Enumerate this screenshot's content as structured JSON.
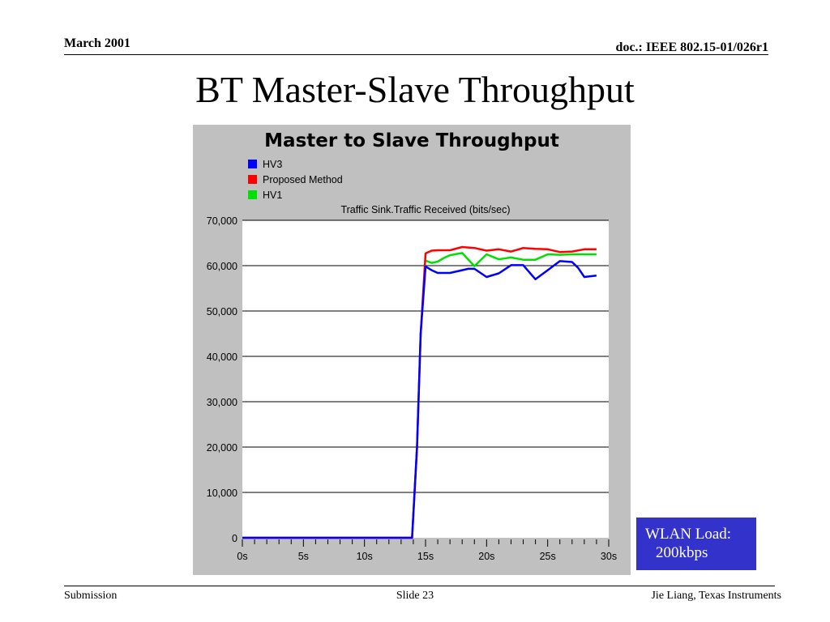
{
  "header": {
    "date": "March 2001",
    "doc": "doc.: IEEE 802.15-01/026r1"
  },
  "slide_title": "BT Master-Slave Throughput",
  "note": {
    "line1": "WLAN Load:",
    "line2": "200kbps"
  },
  "footer": {
    "left": "Submission",
    "center": "Slide 23",
    "right": "Jie Liang, Texas Instruments"
  },
  "colors": {
    "panel": "#c0c0c0",
    "plot_bg": "#ffffff",
    "note_bg": "#3333cc"
  },
  "chart_data": {
    "type": "line",
    "title": "Master to Slave Throughput",
    "ylabel": "Traffic Sink.Traffic Received (bits/sec)",
    "xlabel": "",
    "xlim": [
      0,
      30
    ],
    "ylim": [
      0,
      70000
    ],
    "grid": true,
    "legend_position": "top-left",
    "x_ticks": [
      0,
      5,
      10,
      15,
      20,
      25,
      30
    ],
    "x_tick_labels": [
      "0s",
      "5s",
      "10s",
      "15s",
      "20s",
      "25s",
      "30s"
    ],
    "y_ticks": [
      0,
      10000,
      20000,
      30000,
      40000,
      50000,
      60000,
      70000
    ],
    "y_tick_labels": [
      "0",
      "10,000",
      "20,000",
      "30,000",
      "40,000",
      "50,000",
      "60,000",
      "70,000"
    ],
    "series": [
      {
        "name": "HV3",
        "color": "#0000ff",
        "x": [
          0,
          13.9,
          14.3,
          14.6,
          15.0,
          15.5,
          16.0,
          17.0,
          18.0,
          18.5,
          19.0,
          20.0,
          21.0,
          22.0,
          23.0,
          24.0,
          25.0,
          26.0,
          27.0,
          27.5,
          28.0,
          29.0
        ],
        "y": [
          0,
          0,
          20000,
          45000,
          59800,
          59000,
          58400,
          58400,
          59000,
          59300,
          59300,
          57500,
          58300,
          60100,
          60100,
          57000,
          59000,
          61000,
          60800,
          59500,
          57500,
          57800
        ]
      },
      {
        "name": "Proposed Method",
        "color": "#ff0000",
        "x": [
          0,
          13.9,
          14.3,
          14.6,
          15.0,
          15.5,
          16.0,
          17.0,
          18.0,
          19.0,
          20.0,
          21.0,
          22.0,
          23.0,
          24.0,
          25.0,
          26.0,
          27.0,
          28.0,
          29.0
        ],
        "y": [
          0,
          0,
          20000,
          45000,
          62700,
          63300,
          63400,
          63400,
          64100,
          63900,
          63300,
          63600,
          63100,
          63900,
          63700,
          63600,
          63000,
          63100,
          63600,
          63600
        ]
      },
      {
        "name": "HV1",
        "color": "#00e000",
        "x": [
          15.0,
          15.5,
          16.0,
          16.5,
          17.0,
          18.0,
          19.0,
          20.0,
          21.0,
          22.0,
          23.0,
          24.0,
          25.0,
          26.0,
          27.0,
          28.0,
          29.0
        ],
        "y": [
          61100,
          60600,
          60900,
          61700,
          62300,
          62800,
          59900,
          62500,
          61400,
          61800,
          61300,
          61300,
          62500,
          62400,
          62500,
          62500,
          62500
        ]
      }
    ]
  }
}
